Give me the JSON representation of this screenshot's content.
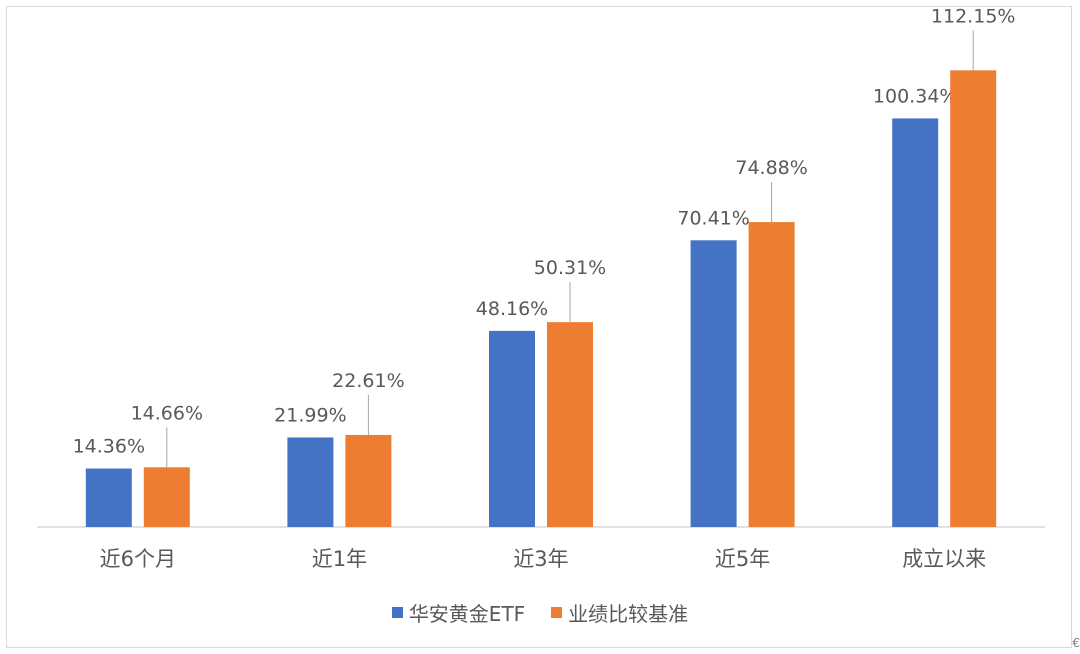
{
  "chart_data": {
    "type": "bar",
    "categories": [
      "近6个月",
      "近1年",
      "近3年",
      "近5年",
      "成立以来"
    ],
    "series": [
      {
        "name": "华安黄金ETF",
        "values": [
          14.36,
          21.99,
          48.16,
          70.41,
          100.34
        ],
        "labels": [
          "14.36%",
          "21.99%",
          "48.16%",
          "70.41%",
          "100.34%"
        ],
        "color": "#4472c4"
      },
      {
        "name": "业绩比较基准",
        "values": [
          14.66,
          22.61,
          50.31,
          74.88,
          112.15
        ],
        "labels": [
          "14.66%",
          "22.61%",
          "50.31%",
          "74.88%",
          "112.15%"
        ],
        "color": "#ed7d31"
      }
    ],
    "ylim": [
      0,
      125
    ],
    "grid": false,
    "legend": "bottom",
    "axis_color": "#d9d9d9",
    "text_color": "#595959"
  },
  "corner_mark": "€"
}
